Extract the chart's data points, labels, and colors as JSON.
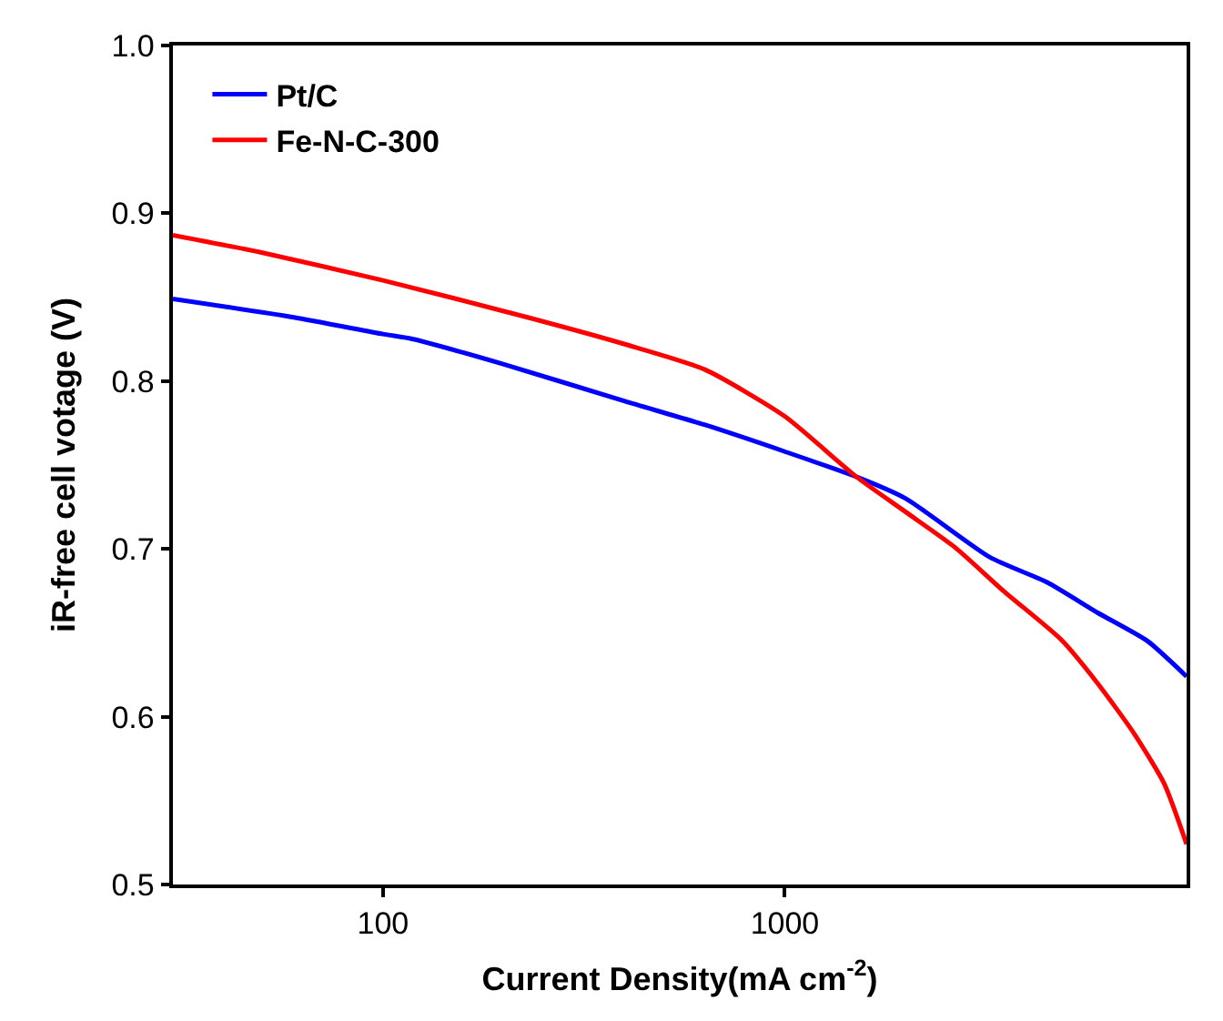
{
  "chart_data": {
    "type": "line",
    "xlabel": "Current Density(mA cm$^{-2}$)",
    "ylabel": "iR-free cell votage (V)",
    "log": "x",
    "xlim": [
      30,
      10000
    ],
    "xticks": [
      100,
      1000
    ],
    "ylim": [
      0.5,
      1.0
    ],
    "yticks": [
      0.5,
      0.6,
      0.7,
      0.8,
      0.9,
      {
        "value": 1.0,
        "label": "1.0"
      }
    ],
    "legend": "top left",
    "marker": "none",
    "line_style": "solid",
    "series": [
      {
        "name": "Pt/C",
        "color": "#0000ff",
        "x": [
          30,
          60,
          100,
          119,
          200,
          400,
          631,
          1000,
          1506,
          2000,
          3240,
          4500,
          6000,
          8000,
          10000
        ],
        "values": [
          0.849,
          0.838,
          0.828,
          0.825,
          0.81,
          0.788,
          0.774,
          0.758,
          0.743,
          0.73,
          0.695,
          0.68,
          0.662,
          0.645,
          0.624
        ]
      },
      {
        "name": "Fe-N-C-300",
        "color": "#ff0000",
        "x": [
          30,
          49,
          100,
          229,
          400,
          631,
          1000,
          1506,
          2000,
          2650,
          3500,
          4870,
          6000,
          7400,
          8800,
          10000
        ],
        "values": [
          0.887,
          0.877,
          0.86,
          0.838,
          0.822,
          0.807,
          0.779,
          0.743,
          0.722,
          0.701,
          0.675,
          0.646,
          0.62,
          0.59,
          0.56,
          0.524
        ]
      }
    ]
  }
}
